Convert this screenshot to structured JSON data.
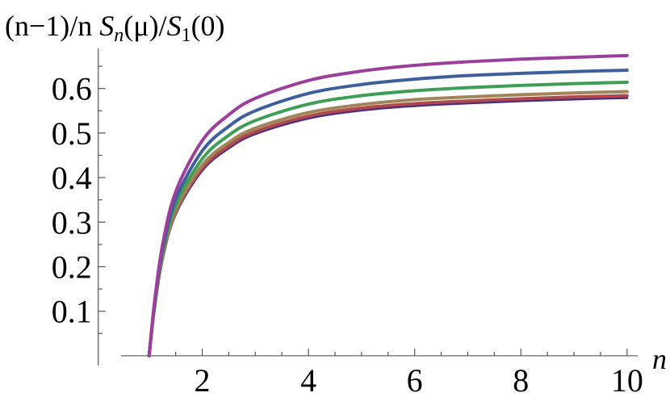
{
  "chart_data": {
    "type": "line",
    "xlabel": "n",
    "ylabel_parts": {
      "prefix": "(n−1)/n ",
      "S": "S",
      "n_sub": "n",
      "mu": "(μ)/",
      "S1": "S",
      "one_sub": "1",
      "zero": "(0)"
    },
    "xlim": [
      0.7,
      10.2
    ],
    "ylim": [
      -0.02,
      0.69
    ],
    "x_ticks": [
      2,
      4,
      6,
      8,
      10
    ],
    "x_tick_labels": [
      "2",
      "4",
      "6",
      "8",
      "10"
    ],
    "y_ticks": [
      0.1,
      0.2,
      0.3,
      0.4,
      0.5,
      0.6
    ],
    "y_tick_labels": [
      "0.1",
      "0.2",
      "0.3",
      "0.4",
      "0.5",
      "0.6"
    ],
    "grid": false,
    "series": [
      {
        "color": "#4b2d83",
        "x": [
          1,
          1.1,
          1.25,
          1.5,
          2,
          2.5,
          3,
          4,
          5,
          6,
          7,
          8,
          9,
          10
        ],
        "y": [
          0,
          0.105,
          0.215,
          0.318,
          0.416,
          0.466,
          0.498,
          0.533,
          0.551,
          0.561,
          0.567,
          0.572,
          0.576,
          0.579
        ]
      },
      {
        "color": "#b04a4a",
        "x": [
          1,
          1.1,
          1.25,
          1.5,
          2,
          2.5,
          3,
          4,
          5,
          6,
          7,
          8,
          9,
          10
        ],
        "y": [
          0,
          0.107,
          0.218,
          0.322,
          0.421,
          0.471,
          0.503,
          0.538,
          0.556,
          0.566,
          0.572,
          0.577,
          0.581,
          0.584
        ]
      },
      {
        "color": "#a0855a",
        "x": [
          1,
          1.1,
          1.25,
          1.5,
          2,
          2.5,
          3,
          4,
          5,
          6,
          7,
          8,
          9,
          10
        ],
        "y": [
          0,
          0.108,
          0.221,
          0.327,
          0.428,
          0.479,
          0.511,
          0.546,
          0.564,
          0.575,
          0.581,
          0.586,
          0.59,
          0.593
        ]
      },
      {
        "color": "#3e9e55",
        "x": [
          1,
          1.1,
          1.25,
          1.5,
          2,
          2.5,
          3,
          4,
          5,
          6,
          7,
          8,
          9,
          10
        ],
        "y": [
          0,
          0.111,
          0.228,
          0.338,
          0.442,
          0.495,
          0.528,
          0.565,
          0.584,
          0.595,
          0.602,
          0.607,
          0.611,
          0.614
        ]
      },
      {
        "color": "#3f5f9c",
        "x": [
          1,
          1.1,
          1.25,
          1.5,
          2,
          2.5,
          3,
          4,
          5,
          6,
          7,
          8,
          9,
          10
        ],
        "y": [
          0,
          0.114,
          0.236,
          0.351,
          0.46,
          0.515,
          0.55,
          0.589,
          0.609,
          0.621,
          0.629,
          0.634,
          0.638,
          0.641
        ]
      },
      {
        "color": "#9b3f9b",
        "x": [
          1,
          1.1,
          1.25,
          1.5,
          2,
          2.5,
          3,
          4,
          5,
          6,
          7,
          8,
          9,
          10
        ],
        "y": [
          0,
          0.119,
          0.247,
          0.368,
          0.483,
          0.541,
          0.578,
          0.618,
          0.639,
          0.652,
          0.66,
          0.666,
          0.67,
          0.674
        ]
      }
    ]
  }
}
